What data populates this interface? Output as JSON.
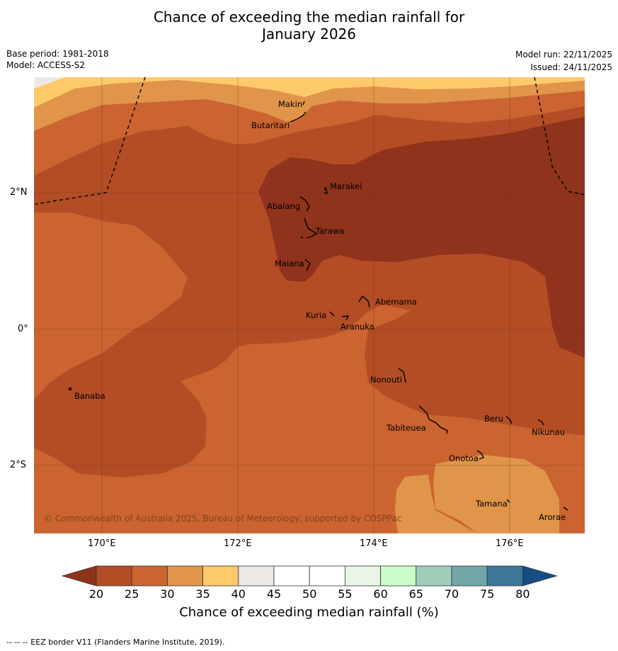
{
  "title_line1": "Chance of exceeding the median rainfall for",
  "title_line2": "January 2026",
  "base_period": "Base period: 1981-2018",
  "model": "Model: ACCESS-S2",
  "model_run": "Model run: 22/11/2025",
  "issued": "Issued: 24/11/2025",
  "copyright": "© Commonwealth of Australia 2025, Bureau of Meteorology, supported by COSPPac",
  "lon_ticks": [
    "170°E",
    "172°E",
    "174°E",
    "176°E"
  ],
  "lat_ticks": [
    "2°N",
    "0°",
    "2°S"
  ],
  "places": [
    "Makin",
    "Butaritari",
    "Marakei",
    "Abaiang",
    "Tarawa",
    "Maiana",
    "Abemama",
    "Kuria",
    "Aranuka",
    "Nonouti",
    "Banaba",
    "Tabiteuea",
    "Beru",
    "Nikunau",
    "Onotoa",
    "Tamana",
    "Arorae"
  ],
  "colorbar": {
    "ticks": [
      "20",
      "25",
      "30",
      "35",
      "40",
      "45",
      "50",
      "55",
      "60",
      "65",
      "70",
      "75",
      "80"
    ],
    "colors": [
      "#8f331c",
      "#b34d26",
      "#cb6431",
      "#e0954a",
      "#fec96a",
      "#ece8e5",
      "#ffffff",
      "#ffffff",
      "#eaf5ea",
      "#c8fcc8",
      "#9fcdb9",
      "#72a6a6",
      "#3e7699",
      "#184c84"
    ],
    "title": "Chance of exceeding median rainfall (%)"
  },
  "footer": "--  --  -- EEZ border V11 (Flanders Marine Institute, 2019)."
}
